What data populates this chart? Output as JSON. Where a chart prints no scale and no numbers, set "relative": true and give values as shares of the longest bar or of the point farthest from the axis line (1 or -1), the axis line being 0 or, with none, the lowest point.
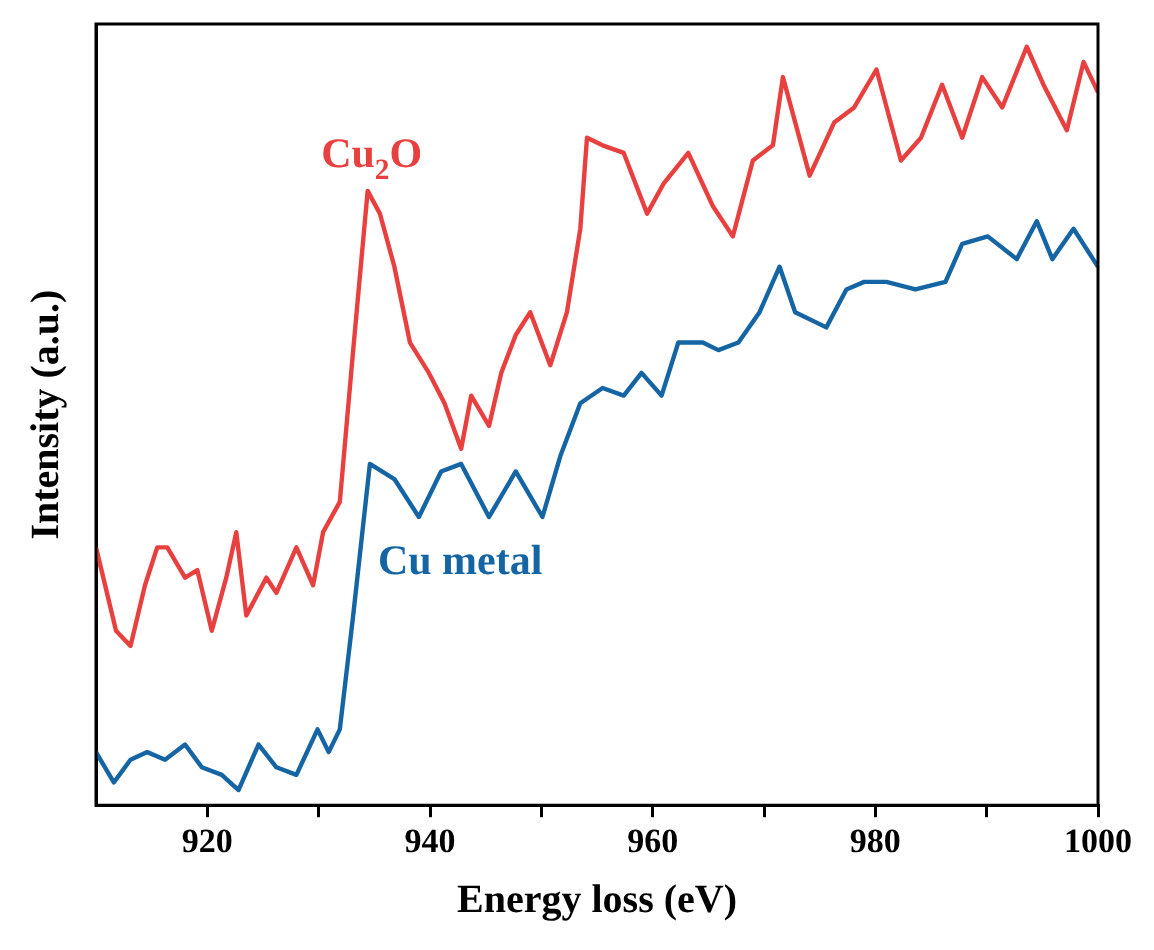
{
  "chart_data": {
    "type": "line",
    "xlabel": "Energy loss (eV)",
    "ylabel": "Intensity (a.u.)",
    "relative": true,
    "xlim": [
      910,
      1000
    ],
    "xticks": [
      920,
      {
        "value": 930,
        "label": null
      },
      940,
      {
        "value": 950,
        "label": null
      },
      960,
      {
        "value": 970,
        "label": null
      },
      980,
      {
        "value": 990,
        "label": null
      },
      1000
    ],
    "grid": false,
    "legend": false,
    "marker": "none",
    "line_style": "solid",
    "series": [
      {
        "name": "Cu$_{2}$O",
        "color": "#e8403f",
        "x": [
          910,
          911.8,
          913.1,
          914.4,
          915.5,
          916.4,
          918.0,
          919.1,
          920.4,
          921.7,
          922.6,
          923.5,
          925.3,
          926.2,
          928.0,
          929.5,
          930.4,
          931.9,
          933.1,
          934.4,
          935.5,
          936.8,
          938.2,
          939.9,
          941.3,
          942.8,
          943.7,
          945.3,
          946.4,
          947.7,
          949.0,
          950.8,
          952.3,
          953.5,
          954.1,
          955.5,
          957.4,
          959.5,
          961.0,
          963.2,
          965.4,
          967.2,
          969.0,
          970.8,
          971.7,
          974.1,
          976.3,
          978.1,
          980.1,
          982.3,
          984.1,
          986.0,
          987.8,
          989.6,
          991.4,
          993.6,
          995.1,
          997.2,
          998.7,
          1000
        ],
        "values": [
          0.34,
          0.23,
          0.21,
          0.29,
          0.34,
          0.34,
          0.3,
          0.31,
          0.23,
          0.3,
          0.36,
          0.25,
          0.3,
          0.28,
          0.34,
          0.29,
          0.36,
          0.4,
          0.6,
          0.81,
          0.78,
          0.71,
          0.61,
          0.57,
          0.53,
          0.47,
          0.54,
          0.5,
          0.57,
          0.62,
          0.65,
          0.58,
          0.65,
          0.76,
          0.88,
          0.87,
          0.86,
          0.78,
          0.82,
          0.86,
          0.79,
          0.75,
          0.85,
          0.87,
          0.96,
          0.83,
          0.9,
          0.92,
          0.97,
          0.85,
          0.88,
          0.95,
          0.88,
          0.96,
          0.92,
          1.0,
          0.95,
          0.89,
          0.98,
          0.94
        ]
      },
      {
        "name": "Cu metal",
        "color": "#1565a5",
        "x": [
          910,
          911.6,
          913.1,
          914.6,
          916.2,
          918.0,
          919.5,
          921.3,
          922.8,
          924.6,
          926.2,
          928.0,
          929.9,
          930.9,
          931.9,
          933.1,
          934.6,
          936.8,
          939.0,
          941.0,
          942.8,
          945.3,
          947.7,
          950.1,
          951.7,
          953.5,
          955.5,
          957.4,
          959.0,
          960.8,
          962.3,
          964.5,
          965.9,
          967.7,
          969.6,
          971.4,
          972.8,
          975.6,
          977.4,
          979.0,
          981.0,
          983.6,
          986.3,
          987.8,
          990.1,
          992.7,
          994.5,
          995.9,
          997.8,
          1000
        ],
        "values": [
          0.07,
          0.03,
          0.06,
          0.07,
          0.06,
          0.08,
          0.05,
          0.04,
          0.02,
          0.08,
          0.05,
          0.04,
          0.1,
          0.07,
          0.1,
          0.25,
          0.45,
          0.43,
          0.38,
          0.44,
          0.45,
          0.38,
          0.44,
          0.38,
          0.46,
          0.53,
          0.55,
          0.54,
          0.57,
          0.54,
          0.61,
          0.61,
          0.6,
          0.61,
          0.65,
          0.71,
          0.65,
          0.63,
          0.68,
          0.69,
          0.69,
          0.68,
          0.69,
          0.74,
          0.75,
          0.72,
          0.77,
          0.72,
          0.76,
          0.71
        ]
      }
    ]
  }
}
